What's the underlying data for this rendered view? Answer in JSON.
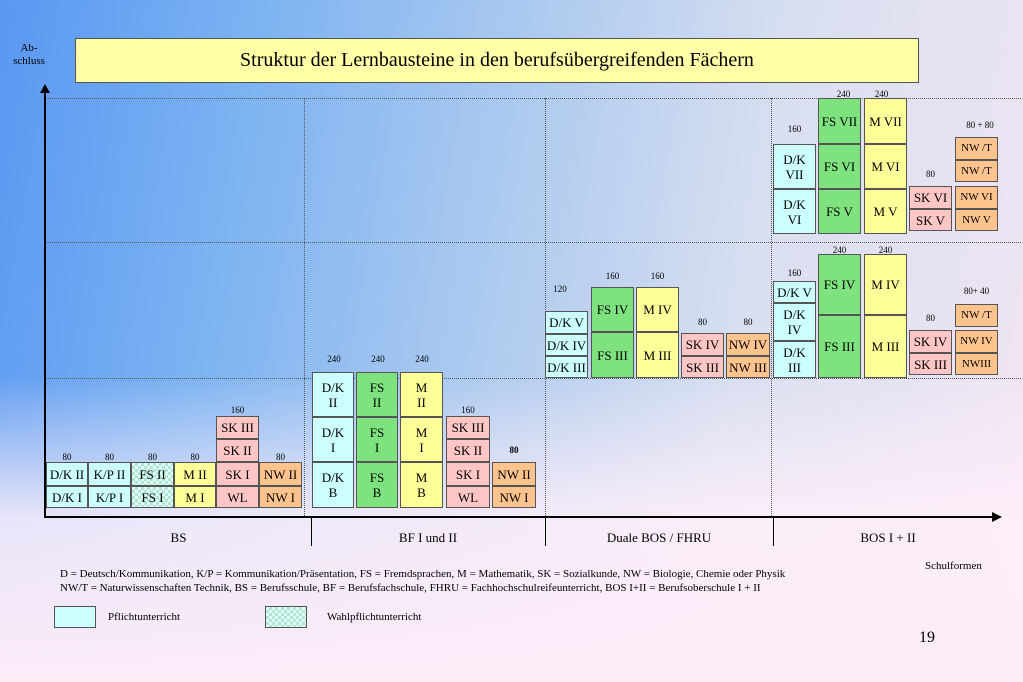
{
  "title": "Struktur der Lernbausteine in den berufsübergreifenden Fächern",
  "y_axis_label": "Ab-\nschluss",
  "x_axis_label": "Schulformen",
  "schulformen": [
    "BS",
    "BF I und  II",
    "Duale BOS / FHRU",
    "BOS I + II"
  ],
  "hours": {
    "bs_dk": "80",
    "bs_kp": "80",
    "bs_fs": "80",
    "bs_m": "80",
    "bs_sk": "160",
    "bs_nw": "80",
    "bf_dk": "240",
    "bf_fs": "240",
    "bf_m": "240",
    "bf_sk": "160",
    "bf_nw": "80",
    "dbos_dk": "120",
    "dbos_fs": "160",
    "dbos_m": "160",
    "dbos_sk": "80",
    "dbos_nw": "80",
    "bos1_dk": "160",
    "bos1_fs": "240",
    "bos1_m": "240",
    "bos1_sk": "80",
    "bos1_nw": "80+ 40",
    "bos2_dk": "160",
    "bos2_fs": "240",
    "bos2_m": "240",
    "bos2_sk": "80",
    "bos2_nw": "80 + 80"
  },
  "blocks": {
    "bs_dk2": "D/K II",
    "bs_dk1": "D/K I",
    "bs_kp2": "K/P II",
    "bs_kp1": "K/P I",
    "bs_fs2": "FS II",
    "bs_fs1": "FS I",
    "bs_m2": "M II",
    "bs_m1": "M I",
    "bs_sk3": "SK III",
    "bs_sk2": "SK II",
    "bs_sk1": "SK I",
    "bs_wl": "WL",
    "bs_nw2": "NW II",
    "bs_nw1": "NW I",
    "bf_dk2": "D/K\nII",
    "bf_dk1": "D/K\nI",
    "bf_dkb": "D/K\nB",
    "bf_fs2": "FS\nII",
    "bf_fs1": "FS\nI",
    "bf_fsb": "FS\nB",
    "bf_m2": "M\nII",
    "bf_m1": "M\nI",
    "bf_mb": "M\nB",
    "bf_sk3": "SK III",
    "bf_sk2": "SK II",
    "bf_sk1": "SK I",
    "bf_wl": "WL",
    "bf_nw2": "NW II",
    "bf_nw1": "NW I",
    "dbos_dk5": "D/K V",
    "dbos_dk4": "D/K IV",
    "dbos_dk3": "D/K III",
    "dbos_fs4": "FS IV",
    "dbos_fs3": "FS III",
    "dbos_m4": "M IV",
    "dbos_m3": "M III",
    "dbos_sk4": "SK IV",
    "dbos_sk3": "SK III",
    "dbos_nw4": "NW IV",
    "dbos_nw3": "NW III",
    "bos1_dk5": "D/K V",
    "bos1_dk4": "D/K\nIV",
    "bos1_dk3": "D/K\nIII",
    "bos1_fs4": "FS IV",
    "bos1_fs3": "FS III",
    "bos1_m4": "M IV",
    "bos1_m3": "M III",
    "bos1_sk4": "SK IV",
    "bos1_sk3": "SK III",
    "bos1_nwt": "NW /T",
    "bos1_nw4": "NW IV",
    "bos1_nw3": "NWIII",
    "bos2_dk7": "D/K\nVII",
    "bos2_dk6": "D/K\nVI",
    "bos2_fs7": "FS VII",
    "bos2_fs6": "FS VI",
    "bos2_fs5": "FS V",
    "bos2_m7": "M VII",
    "bos2_m6": "M VI",
    "bos2_m5": "M V",
    "bos2_sk6": "SK VI",
    "bos2_sk5": "SK V",
    "bos2_nwt2": "NW /T",
    "bos2_nwt1": "NW /T",
    "bos2_nw6": "NW VI",
    "bos2_nw5": "NW V"
  },
  "legend_text_1": "D = Deutsch/Kommunikation, K/P = Kommunikation/Präsentation, FS  = Fremdsprachen, M = Mathematik, SK = Sozialkunde, NW = Biologie, Chemie oder Physik",
  "legend_text_2": "NW/T = Naturwissenschaften Technik, BS = Berufsschule, BF = Berufsfachschule,  FHRU = Fachhochschulreifeunterricht, BOS I+II = Berufsoberschule I + II",
  "legend_pflicht": "Pflichtunterricht",
  "legend_wahl": "Wahlpflichtunterricht",
  "page_number": "19",
  "colors": {
    "pflicht": "#ccffff",
    "fs": "#7ee37e",
    "m": "#ffff99",
    "sk": "#ffc6c6",
    "nw": "#ffc48e",
    "title_bg": "#ffffa8"
  }
}
